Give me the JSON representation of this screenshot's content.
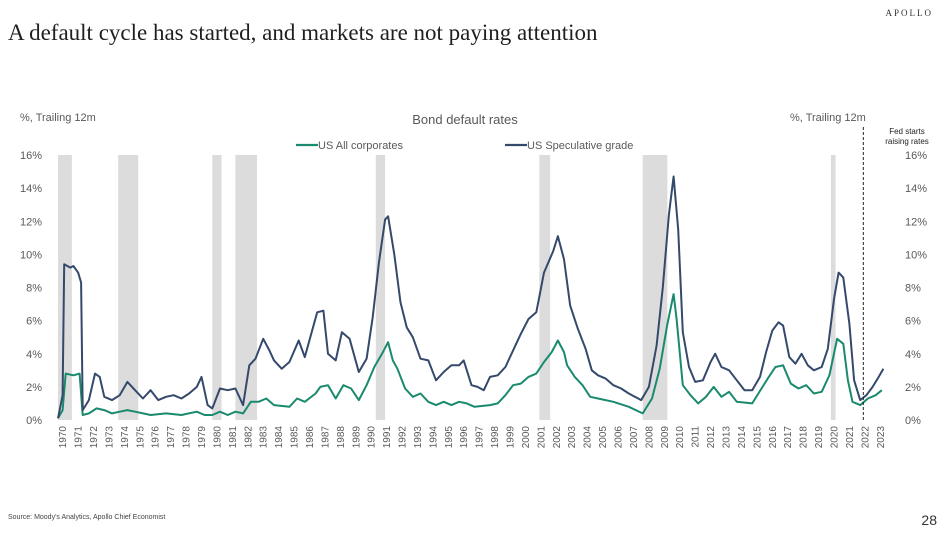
{
  "header": {
    "brand": "APOLLO",
    "title": "A default cycle has started, and markets are not paying attention"
  },
  "footer": {
    "source": "Source: Moody's Analytics, Apollo Chief Economist",
    "page_number": "28"
  },
  "colors": {
    "all_corporates": "#1a8a6e",
    "speculative": "#34496b",
    "recession": "#dcdcdc"
  },
  "chart_data": {
    "type": "line",
    "title": "Bond default rates",
    "ylabel_left": "%, Trailing 12m",
    "ylabel_right": "%, Trailing 12m",
    "ylim": [
      0,
      16
    ],
    "y_ticks": [
      "0%",
      "2%",
      "4%",
      "6%",
      "8%",
      "10%",
      "12%",
      "14%",
      "16%"
    ],
    "x_ticks": [
      "1970",
      "1971",
      "1972",
      "1973",
      "1974",
      "1975",
      "1976",
      "1977",
      "1978",
      "1979",
      "1980",
      "1981",
      "1982",
      "1983",
      "1984",
      "1985",
      "1986",
      "1987",
      "1988",
      "1989",
      "1990",
      "1991",
      "1992",
      "1993",
      "1994",
      "1995",
      "1996",
      "1997",
      "1998",
      "1999",
      "2000",
      "2001",
      "2002",
      "2003",
      "2004",
      "2005",
      "2006",
      "2007",
      "2008",
      "2009",
      "2010",
      "2011",
      "2012",
      "2013",
      "2014",
      "2015",
      "2016",
      "2017",
      "2018",
      "2019",
      "2020",
      "2021",
      "2022",
      "2023"
    ],
    "xlim": [
      1970,
      2023.8
    ],
    "legend": [
      "US All corporates",
      "US Speculative grade"
    ],
    "legend_position": "top",
    "annotation": {
      "year": 2022.2,
      "text_line1": "Fed starts",
      "text_line2": "raising rates"
    },
    "recessions": [
      [
        1970.0,
        1970.9
      ],
      [
        1973.9,
        1975.2
      ],
      [
        1980.0,
        1980.6
      ],
      [
        1981.5,
        1982.9
      ],
      [
        1990.6,
        1991.2
      ],
      [
        2001.2,
        2001.9
      ],
      [
        2007.9,
        2009.5
      ],
      [
        2020.1,
        2020.4
      ]
    ],
    "series": [
      {
        "name": "US All corporates",
        "points": [
          [
            1970.0,
            0.1
          ],
          [
            1970.3,
            0.6
          ],
          [
            1970.5,
            2.8
          ],
          [
            1971.0,
            2.7
          ],
          [
            1971.4,
            2.8
          ],
          [
            1971.6,
            0.3
          ],
          [
            1972.0,
            0.4
          ],
          [
            1972.5,
            0.7
          ],
          [
            1973.0,
            0.6
          ],
          [
            1973.5,
            0.4
          ],
          [
            1974.0,
            0.5
          ],
          [
            1974.5,
            0.6
          ],
          [
            1975.0,
            0.5
          ],
          [
            1976.0,
            0.3
          ],
          [
            1977.0,
            0.4
          ],
          [
            1978.0,
            0.3
          ],
          [
            1979.0,
            0.5
          ],
          [
            1979.5,
            0.3
          ],
          [
            1980.0,
            0.3
          ],
          [
            1980.5,
            0.5
          ],
          [
            1981.0,
            0.3
          ],
          [
            1981.5,
            0.5
          ],
          [
            1982.0,
            0.4
          ],
          [
            1982.5,
            1.1
          ],
          [
            1983.0,
            1.1
          ],
          [
            1983.5,
            1.3
          ],
          [
            1984.0,
            0.9
          ],
          [
            1985.0,
            0.8
          ],
          [
            1985.5,
            1.3
          ],
          [
            1986.0,
            1.1
          ],
          [
            1986.7,
            1.6
          ],
          [
            1987.0,
            2.0
          ],
          [
            1987.5,
            2.1
          ],
          [
            1988.0,
            1.3
          ],
          [
            1988.5,
            2.1
          ],
          [
            1989.0,
            1.9
          ],
          [
            1989.5,
            1.2
          ],
          [
            1990.0,
            2.1
          ],
          [
            1990.5,
            3.2
          ],
          [
            1991.0,
            4.0
          ],
          [
            1991.4,
            4.7
          ],
          [
            1991.7,
            3.6
          ],
          [
            1992.0,
            3.1
          ],
          [
            1992.5,
            1.9
          ],
          [
            1993.0,
            1.4
          ],
          [
            1993.5,
            1.6
          ],
          [
            1994.0,
            1.1
          ],
          [
            1994.5,
            0.9
          ],
          [
            1995.0,
            1.1
          ],
          [
            1995.5,
            0.9
          ],
          [
            1996.0,
            1.1
          ],
          [
            1996.5,
            1.0
          ],
          [
            1997.0,
            0.8
          ],
          [
            1998.0,
            0.9
          ],
          [
            1998.5,
            1.0
          ],
          [
            1999.0,
            1.5
          ],
          [
            1999.5,
            2.1
          ],
          [
            2000.0,
            2.2
          ],
          [
            2000.5,
            2.6
          ],
          [
            2001.0,
            2.8
          ],
          [
            2001.5,
            3.5
          ],
          [
            2002.0,
            4.1
          ],
          [
            2002.4,
            4.8
          ],
          [
            2002.8,
            4.1
          ],
          [
            2003.0,
            3.3
          ],
          [
            2003.5,
            2.6
          ],
          [
            2004.0,
            2.1
          ],
          [
            2004.5,
            1.4
          ],
          [
            2005.0,
            1.3
          ],
          [
            2006.0,
            1.1
          ],
          [
            2007.0,
            0.8
          ],
          [
            2007.9,
            0.4
          ],
          [
            2008.5,
            1.3
          ],
          [
            2009.0,
            3.1
          ],
          [
            2009.5,
            5.8
          ],
          [
            2009.9,
            7.6
          ],
          [
            2010.1,
            6.1
          ],
          [
            2010.5,
            2.1
          ],
          [
            2011.0,
            1.5
          ],
          [
            2011.5,
            1.0
          ],
          [
            2012.0,
            1.4
          ],
          [
            2012.5,
            2.0
          ],
          [
            2013.0,
            1.4
          ],
          [
            2013.5,
            1.7
          ],
          [
            2014.0,
            1.1
          ],
          [
            2015.0,
            1.0
          ],
          [
            2015.6,
            1.9
          ],
          [
            2016.0,
            2.5
          ],
          [
            2016.5,
            3.2
          ],
          [
            2017.0,
            3.3
          ],
          [
            2017.5,
            2.2
          ],
          [
            2018.0,
            1.9
          ],
          [
            2018.5,
            2.1
          ],
          [
            2019.0,
            1.6
          ],
          [
            2019.5,
            1.7
          ],
          [
            2020.0,
            2.7
          ],
          [
            2020.5,
            4.9
          ],
          [
            2020.9,
            4.6
          ],
          [
            2021.2,
            2.4
          ],
          [
            2021.5,
            1.1
          ],
          [
            2022.0,
            0.9
          ],
          [
            2022.5,
            1.3
          ],
          [
            2023.0,
            1.5
          ],
          [
            2023.4,
            1.8
          ]
        ]
      },
      {
        "name": "US Speculative grade",
        "points": [
          [
            1970.0,
            0.1
          ],
          [
            1970.3,
            1.5
          ],
          [
            1970.4,
            9.4
          ],
          [
            1970.8,
            9.2
          ],
          [
            1971.0,
            9.3
          ],
          [
            1971.3,
            8.9
          ],
          [
            1971.5,
            8.3
          ],
          [
            1971.6,
            0.6
          ],
          [
            1972.0,
            1.2
          ],
          [
            1972.4,
            2.8
          ],
          [
            1972.7,
            2.6
          ],
          [
            1973.0,
            1.4
          ],
          [
            1973.5,
            1.2
          ],
          [
            1974.0,
            1.5
          ],
          [
            1974.5,
            2.3
          ],
          [
            1975.0,
            1.8
          ],
          [
            1975.5,
            1.3
          ],
          [
            1976.0,
            1.8
          ],
          [
            1976.5,
            1.2
          ],
          [
            1977.0,
            1.4
          ],
          [
            1977.5,
            1.5
          ],
          [
            1978.0,
            1.3
          ],
          [
            1978.5,
            1.6
          ],
          [
            1979.0,
            2.0
          ],
          [
            1979.3,
            2.6
          ],
          [
            1979.7,
            0.9
          ],
          [
            1980.0,
            0.7
          ],
          [
            1980.5,
            1.9
          ],
          [
            1981.0,
            1.8
          ],
          [
            1981.5,
            1.9
          ],
          [
            1982.0,
            0.9
          ],
          [
            1982.4,
            3.3
          ],
          [
            1982.8,
            3.7
          ],
          [
            1983.3,
            4.9
          ],
          [
            1983.7,
            4.2
          ],
          [
            1984.0,
            3.6
          ],
          [
            1984.5,
            3.1
          ],
          [
            1985.0,
            3.5
          ],
          [
            1985.6,
            4.8
          ],
          [
            1986.0,
            3.8
          ],
          [
            1986.5,
            5.5
          ],
          [
            1986.8,
            6.5
          ],
          [
            1987.2,
            6.6
          ],
          [
            1987.5,
            4.0
          ],
          [
            1988.0,
            3.6
          ],
          [
            1988.4,
            5.3
          ],
          [
            1988.9,
            4.9
          ],
          [
            1989.5,
            2.9
          ],
          [
            1990.0,
            3.7
          ],
          [
            1990.4,
            6.2
          ],
          [
            1990.8,
            9.5
          ],
          [
            1991.2,
            12.1
          ],
          [
            1991.4,
            12.3
          ],
          [
            1991.8,
            10.0
          ],
          [
            1992.2,
            7.1
          ],
          [
            1992.6,
            5.6
          ],
          [
            1993.0,
            5.0
          ],
          [
            1993.5,
            3.7
          ],
          [
            1994.0,
            3.6
          ],
          [
            1994.5,
            2.4
          ],
          [
            1995.0,
            2.9
          ],
          [
            1995.5,
            3.3
          ],
          [
            1996.0,
            3.3
          ],
          [
            1996.3,
            3.6
          ],
          [
            1996.8,
            2.1
          ],
          [
            1997.2,
            2.0
          ],
          [
            1997.6,
            1.8
          ],
          [
            1998.0,
            2.6
          ],
          [
            1998.5,
            2.7
          ],
          [
            1999.0,
            3.2
          ],
          [
            1999.5,
            4.2
          ],
          [
            2000.0,
            5.2
          ],
          [
            2000.5,
            6.1
          ],
          [
            2001.0,
            6.5
          ],
          [
            2001.5,
            8.9
          ],
          [
            2002.1,
            10.2
          ],
          [
            2002.4,
            11.1
          ],
          [
            2002.8,
            9.7
          ],
          [
            2003.2,
            6.9
          ],
          [
            2003.7,
            5.5
          ],
          [
            2004.2,
            4.3
          ],
          [
            2004.6,
            3.0
          ],
          [
            2005.0,
            2.7
          ],
          [
            2005.5,
            2.5
          ],
          [
            2006.0,
            2.1
          ],
          [
            2006.5,
            1.9
          ],
          [
            2007.0,
            1.6
          ],
          [
            2007.8,
            1.2
          ],
          [
            2008.3,
            2.0
          ],
          [
            2008.8,
            4.5
          ],
          [
            2009.2,
            8.0
          ],
          [
            2009.6,
            12.4
          ],
          [
            2009.9,
            14.7
          ],
          [
            2010.2,
            11.5
          ],
          [
            2010.5,
            5.3
          ],
          [
            2010.9,
            3.2
          ],
          [
            2011.3,
            2.3
          ],
          [
            2011.8,
            2.4
          ],
          [
            2012.3,
            3.5
          ],
          [
            2012.6,
            4.0
          ],
          [
            2013.0,
            3.2
          ],
          [
            2013.5,
            3.0
          ],
          [
            2014.0,
            2.4
          ],
          [
            2014.5,
            1.8
          ],
          [
            2015.0,
            1.8
          ],
          [
            2015.5,
            2.6
          ],
          [
            2015.9,
            4.1
          ],
          [
            2016.3,
            5.4
          ],
          [
            2016.7,
            5.9
          ],
          [
            2017.0,
            5.7
          ],
          [
            2017.4,
            3.8
          ],
          [
            2017.8,
            3.4
          ],
          [
            2018.2,
            4.0
          ],
          [
            2018.6,
            3.3
          ],
          [
            2019.0,
            3.0
          ],
          [
            2019.5,
            3.2
          ],
          [
            2019.9,
            4.3
          ],
          [
            2020.3,
            7.3
          ],
          [
            2020.6,
            8.9
          ],
          [
            2020.9,
            8.6
          ],
          [
            2021.3,
            5.8
          ],
          [
            2021.6,
            2.4
          ],
          [
            2022.0,
            1.2
          ],
          [
            2022.4,
            1.5
          ],
          [
            2022.8,
            2.0
          ],
          [
            2023.2,
            2.6
          ],
          [
            2023.5,
            3.1
          ]
        ]
      }
    ]
  }
}
